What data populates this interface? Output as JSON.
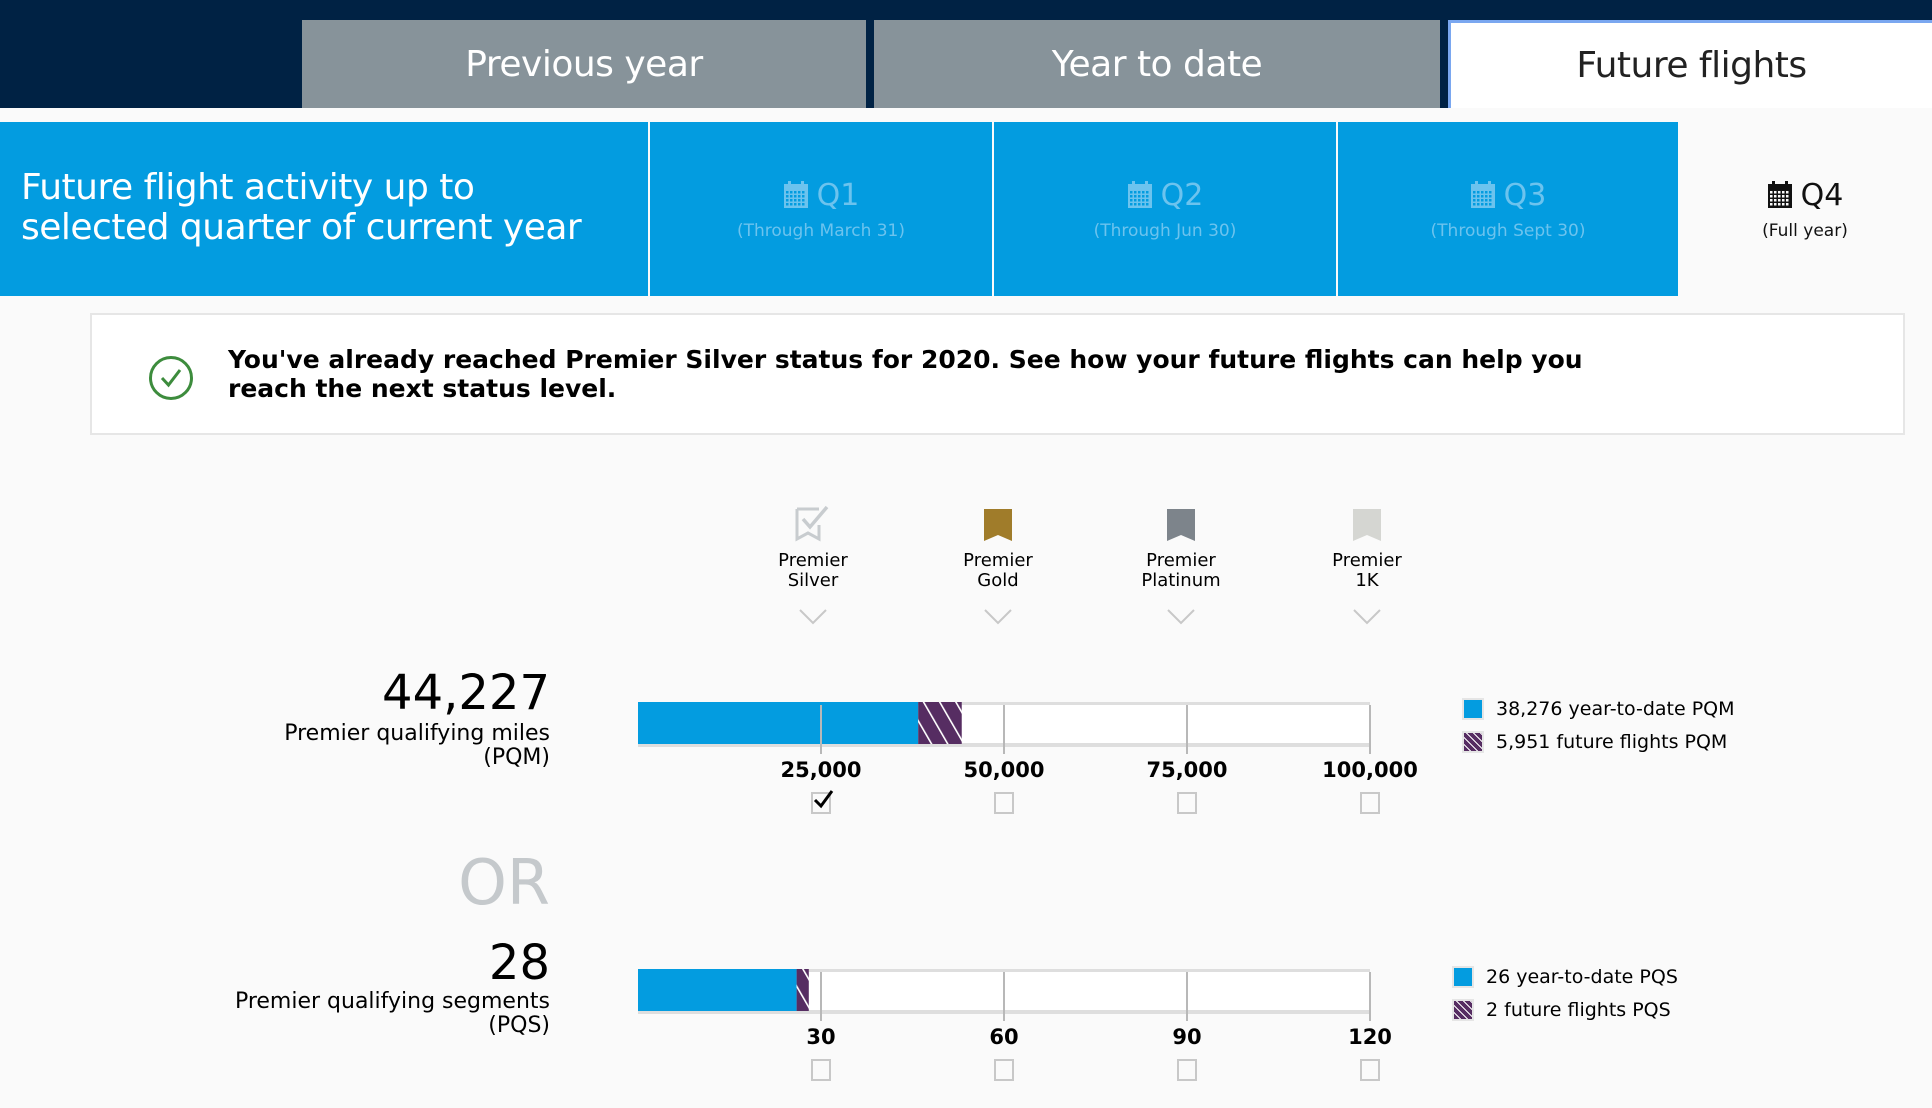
{
  "tabs": [
    {
      "label": "Previous year",
      "active": false
    },
    {
      "label": "Year to date",
      "active": false
    },
    {
      "label": "Future flights",
      "active": true
    }
  ],
  "quarter_selector": {
    "intro_line1": "Future flight activity up to",
    "intro_line2": "selected quarter of current year",
    "quarters": [
      {
        "label": "Q1",
        "sub": "(Through March 31)",
        "active": false
      },
      {
        "label": "Q2",
        "sub": "(Through Jun 30)",
        "active": false
      },
      {
        "label": "Q3",
        "sub": "(Through Sept 30)",
        "active": false
      },
      {
        "label": "Q4",
        "sub": "(Full year)",
        "active": true
      }
    ]
  },
  "banner": {
    "icon": "check-circle-icon",
    "text": "You've already reached Premier Silver status for 2020. See how your future flights can help you reach the next status level."
  },
  "tiers": [
    {
      "line1": "Premier",
      "line2": "Silver",
      "icon": "checked-ribbon-icon",
      "color": "#c8cccf"
    },
    {
      "line1": "Premier",
      "line2": "Gold",
      "icon": "ribbon-icon",
      "color": "#a07c2a"
    },
    {
      "line1": "Premier",
      "line2": "Platinum",
      "icon": "ribbon-icon",
      "color": "#7d848b"
    },
    {
      "line1": "Premier",
      "line2": "1K",
      "icon": "ribbon-icon",
      "color": "#d5d6d2"
    }
  ],
  "or_label": "OR",
  "colors": {
    "ytd": "#039ce0",
    "future": "#562d62",
    "navy": "#002244"
  },
  "chart_data": [
    {
      "type": "bar",
      "id": "pqm",
      "total": "44,227",
      "label": "Premier qualifying miles",
      "label_abbr": "(PQM)",
      "xlim": [
        0,
        100000
      ],
      "ticks": [
        25000,
        50000,
        75000,
        100000
      ],
      "tick_labels": [
        "25,000",
        "50,000",
        "75,000",
        "100,000"
      ],
      "tick_checked": [
        true,
        false,
        false,
        false
      ],
      "series": [
        {
          "name": "year-to-date PQM",
          "value": 38276,
          "value_label": "38,276",
          "legend": "38,276 year-to-date PQM"
        },
        {
          "name": "future flights PQM",
          "value": 5951,
          "value_label": "5,951",
          "legend": "5,951 future flights PQM"
        }
      ]
    },
    {
      "type": "bar",
      "id": "pqs",
      "total": "28",
      "label": "Premier qualifying segments",
      "label_abbr": "(PQS)",
      "xlim": [
        0,
        120
      ],
      "ticks": [
        30,
        60,
        90,
        120
      ],
      "tick_labels": [
        "30",
        "60",
        "90",
        "120"
      ],
      "tick_checked": [
        false,
        false,
        false,
        false
      ],
      "series": [
        {
          "name": "year-to-date PQS",
          "value": 26,
          "value_label": "26",
          "legend": "26 year-to-date PQS"
        },
        {
          "name": "future flights PQS",
          "value": 2,
          "value_label": "2",
          "legend": "2 future flights PQS"
        }
      ]
    }
  ]
}
